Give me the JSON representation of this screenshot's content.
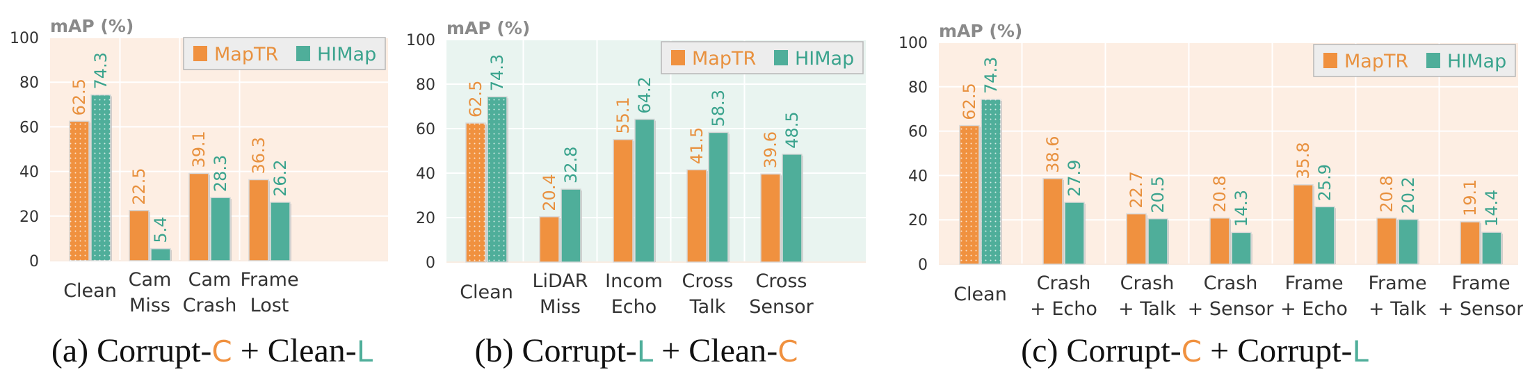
{
  "colors": {
    "mapTR": "#f0913f",
    "hiMap": "#4fae9a",
    "mapTRLabel": "#e8913f",
    "hiMapLabel": "#3aa38d",
    "bgWarm": "#fdeee3",
    "bgCool": "#e9f4f0"
  },
  "chart_data": [
    {
      "type": "bar",
      "caption": {
        "prefix": "(a) Corrupt-",
        "first": "C",
        "mid": " + Clean-",
        "second": "L"
      },
      "ylabel": "mAP (%)",
      "ylim": [
        0,
        100
      ],
      "yticks": [
        "0",
        "20",
        "40",
        "60",
        "80",
        "100"
      ],
      "grid": true,
      "legend": "top-right",
      "categories": [
        [
          "Clean"
        ],
        [
          "Cam",
          "Miss"
        ],
        [
          "Cam",
          "Crash"
        ],
        [
          "Frame",
          "Lost"
        ]
      ],
      "series": [
        {
          "name": "MapTR",
          "values": [
            62.5,
            22.5,
            39.1,
            36.3
          ],
          "labels": [
            "62.5",
            "22.5",
            "39.1",
            "36.3"
          ]
        },
        {
          "name": "HIMap",
          "values": [
            74.3,
            5.4,
            28.3,
            26.2
          ],
          "labels": [
            "74.3",
            "5.4",
            "28.3",
            "26.2"
          ]
        }
      ]
    },
    {
      "type": "bar",
      "caption": {
        "prefix": "(b) Corrupt-",
        "first": "L",
        "mid": " + Clean-",
        "second": "C"
      },
      "ylabel": "mAP (%)",
      "ylim": [
        0,
        100
      ],
      "yticks": [
        "0",
        "20",
        "40",
        "60",
        "80",
        "100"
      ],
      "grid": true,
      "legend": "top-right",
      "categories": [
        [
          "Clean"
        ],
        [
          "LiDAR",
          "Miss"
        ],
        [
          "Incom",
          "Echo"
        ],
        [
          "Cross",
          "Talk"
        ],
        [
          "Cross",
          "Sensor"
        ]
      ],
      "series": [
        {
          "name": "MapTR",
          "values": [
            62.5,
            20.4,
            55.1,
            41.5,
            39.6
          ],
          "labels": [
            "62.5",
            "20.4",
            "55.1",
            "41.5",
            "39.6"
          ]
        },
        {
          "name": "HIMap",
          "values": [
            74.3,
            32.8,
            64.2,
            58.3,
            48.5
          ],
          "labels": [
            "74.3",
            "32.8",
            "64.2",
            "58.3",
            "48.5"
          ]
        }
      ]
    },
    {
      "type": "bar",
      "caption": {
        "prefix": "(c) Corrupt-",
        "first": "C",
        "mid": " + Corrupt-",
        "second": "L"
      },
      "ylabel": "mAP (%)",
      "ylim": [
        0,
        100
      ],
      "yticks": [
        "0",
        "20",
        "40",
        "60",
        "80",
        "100"
      ],
      "grid": true,
      "legend": "top-right",
      "categories": [
        [
          "Clean"
        ],
        [
          "Crash",
          "+ Echo"
        ],
        [
          "Crash",
          "+ Talk"
        ],
        [
          "Crash",
          "+ Sensor"
        ],
        [
          "Frame",
          "+ Echo"
        ],
        [
          "Frame",
          "+ Talk"
        ],
        [
          "Frame",
          "+ Sensor"
        ]
      ],
      "series": [
        {
          "name": "MapTR",
          "values": [
            62.5,
            38.6,
            22.7,
            20.8,
            35.8,
            20.8,
            19.1
          ],
          "labels": [
            "62.5",
            "38.6",
            "22.7",
            "20.8",
            "35.8",
            "20.8",
            "19.1"
          ]
        },
        {
          "name": "HIMap",
          "values": [
            74.3,
            27.9,
            20.5,
            14.3,
            25.9,
            20.2,
            14.4
          ],
          "labels": [
            "74.3",
            "27.9",
            "20.5",
            "14.3",
            "25.9",
            "20.2",
            "14.4"
          ]
        }
      ]
    }
  ]
}
